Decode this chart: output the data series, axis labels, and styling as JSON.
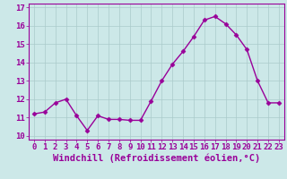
{
  "x": [
    0,
    1,
    2,
    3,
    4,
    5,
    6,
    7,
    8,
    9,
    10,
    11,
    12,
    13,
    14,
    15,
    16,
    17,
    18,
    19,
    20,
    21,
    22,
    23
  ],
  "y": [
    11.2,
    11.3,
    11.8,
    12.0,
    11.1,
    10.3,
    11.1,
    10.9,
    10.9,
    10.85,
    10.85,
    11.9,
    13.0,
    13.9,
    14.6,
    15.4,
    16.3,
    16.5,
    16.1,
    15.5,
    14.7,
    13.0,
    11.8,
    11.8
  ],
  "line_color": "#990099",
  "marker": "D",
  "marker_size": 2.5,
  "bg_color": "#cce8e8",
  "grid_color": "#aacaca",
  "xlabel": "Windchill (Refroidissement éolien,°C)",
  "xlabel_color": "#990099",
  "tick_color": "#990099",
  "spine_color": "#990099",
  "ylim": [
    9.8,
    17.2
  ],
  "xlim": [
    -0.5,
    23.5
  ],
  "yticks": [
    10,
    11,
    12,
    13,
    14,
    15,
    16,
    17
  ],
  "xticks": [
    0,
    1,
    2,
    3,
    4,
    5,
    6,
    7,
    8,
    9,
    10,
    11,
    12,
    13,
    14,
    15,
    16,
    17,
    18,
    19,
    20,
    21,
    22,
    23
  ],
  "tick_fontsize": 6.5,
  "xlabel_fontsize": 7.5,
  "linewidth": 1.0
}
